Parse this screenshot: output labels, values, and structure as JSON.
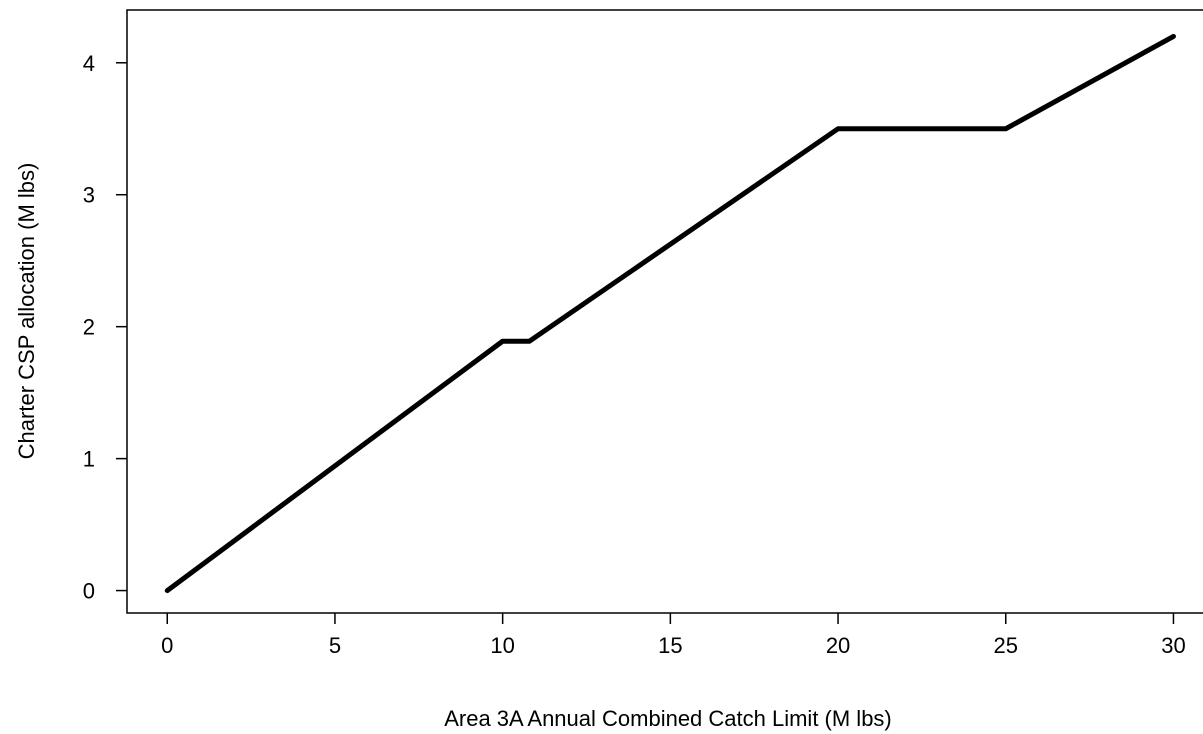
{
  "chart_data": {
    "type": "line",
    "title": "",
    "xlabel": "Area 3A Annual Combined Catch Limit (M lbs)",
    "ylabel": "Charter CSP allocation (M lbs)",
    "xlim": [
      -1.2,
      31.0
    ],
    "ylim": [
      -0.17,
      4.4
    ],
    "x_ticks": [
      0,
      5,
      10,
      15,
      20,
      25,
      30
    ],
    "y_ticks": [
      0,
      1,
      2,
      3,
      4
    ],
    "grid": false,
    "legend": "none",
    "series": [
      {
        "color": "#000000",
        "points": [
          {
            "x": 0,
            "y": 0
          },
          {
            "x": 10,
            "y": 1.89
          },
          {
            "x": 10.8,
            "y": 1.89
          },
          {
            "x": 20,
            "y": 3.5
          },
          {
            "x": 25,
            "y": 3.5
          },
          {
            "x": 30,
            "y": 4.2
          }
        ]
      }
    ]
  }
}
